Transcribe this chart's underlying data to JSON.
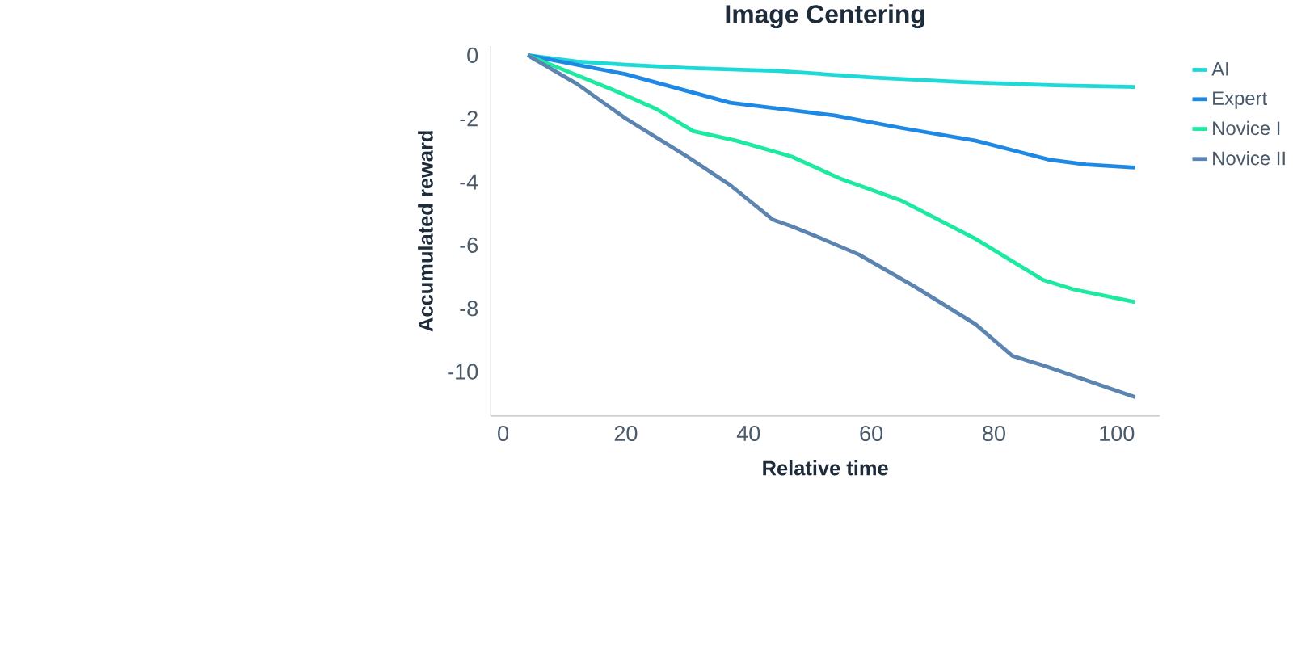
{
  "chart_data": {
    "type": "line",
    "title": "Image Centering",
    "xlabel": "Relative time",
    "ylabel": "Accumulated reward",
    "xlim": [
      -2,
      107
    ],
    "ylim": [
      -11.4,
      0.3
    ],
    "xticks": [
      0,
      20,
      40,
      60,
      80,
      100
    ],
    "yticks": [
      0,
      -2,
      -4,
      -6,
      -8,
      -10
    ],
    "grid": false,
    "legend": "right",
    "marker": "none",
    "line_style": "solid",
    "series": [
      {
        "name": "AI",
        "color": "#1fd8d8",
        "x": [
          4,
          12,
          20,
          30,
          45,
          60,
          75,
          90,
          103
        ],
        "values": [
          0,
          -0.2,
          -0.3,
          -0.4,
          -0.5,
          -0.7,
          -0.85,
          -0.95,
          -1.0
        ]
      },
      {
        "name": "Expert",
        "color": "#1e88e5",
        "x": [
          4,
          20,
          37,
          54,
          65,
          77,
          89,
          95,
          103
        ],
        "values": [
          0,
          -0.6,
          -1.5,
          -1.9,
          -2.3,
          -2.7,
          -3.3,
          -3.45,
          -3.55
        ]
      },
      {
        "name": "Novice I",
        "color": "#1de9a0",
        "x": [
          4,
          18,
          25,
          31,
          38,
          47,
          55,
          65,
          77,
          88,
          93,
          103
        ],
        "values": [
          0,
          -1.1,
          -1.7,
          -2.4,
          -2.7,
          -3.2,
          -3.9,
          -4.6,
          -5.8,
          -7.1,
          -7.4,
          -7.8
        ]
      },
      {
        "name": "Novice II",
        "color": "#5b84b1",
        "x": [
          4,
          12,
          20,
          30,
          37,
          44,
          47,
          52,
          58,
          67,
          77,
          83,
          88,
          103
        ],
        "values": [
          0,
          -0.9,
          -2.0,
          -3.2,
          -4.1,
          -5.2,
          -5.4,
          -5.8,
          -6.3,
          -7.3,
          -8.5,
          -9.5,
          -9.8,
          -10.8
        ]
      }
    ]
  }
}
